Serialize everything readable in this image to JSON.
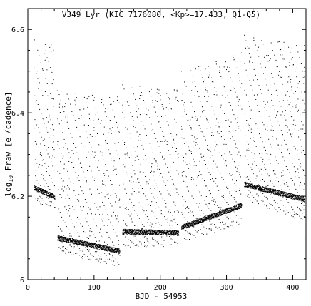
{
  "chart_data": {
    "type": "scatter",
    "title": "V349 Lyr (KIC 7176080, <Kp>=17.433, Q1-Q5)",
    "xlabel": "BJD - 54953",
    "ylabel": "log10 Fraw [e−/cadence]",
    "xlim": [
      0,
      420
    ],
    "ylim": [
      6.0,
      6.65
    ],
    "x_ticks": [
      0,
      100,
      200,
      300,
      400
    ],
    "y_ticks": [
      6.0,
      6.2,
      6.4,
      6.6
    ],
    "x_tick_labels": [
      "0",
      "100",
      "200",
      "300",
      "400"
    ],
    "y_tick_labels": [
      "6",
      "6.2",
      "6.4",
      "6.6"
    ],
    "grid": false,
    "legend": "none",
    "marker_color": "#000000",
    "segments": [
      {
        "x": [
          10,
          41
        ],
        "outburst_max": [
          6.575,
          6.565
        ],
        "quiescence": [
          6.22,
          6.198
        ],
        "lower_edge": [
          6.185,
          6.17
        ]
      },
      {
        "x": [
          45,
          139
        ],
        "outburst_max": [
          6.455,
          6.44
        ],
        "quiescence": [
          6.1,
          6.068
        ],
        "lower_edge": [
          6.068,
          6.03
        ]
      },
      {
        "x": [
          143,
          228
        ],
        "outburst_max": [
          6.468,
          6.458
        ],
        "quiescence": [
          6.115,
          6.112
        ],
        "lower_edge": [
          6.078,
          6.082
        ]
      },
      {
        "x": [
          232,
          323
        ],
        "outburst_max": [
          6.5,
          6.548
        ],
        "quiescence": [
          6.125,
          6.178
        ],
        "lower_edge": [
          6.09,
          6.135
        ]
      },
      {
        "x": [
          327,
          418
        ],
        "outburst_max": [
          6.585,
          6.565
        ],
        "quiescence": [
          6.228,
          6.192
        ],
        "lower_edge": [
          6.195,
          6.14
        ]
      }
    ]
  }
}
